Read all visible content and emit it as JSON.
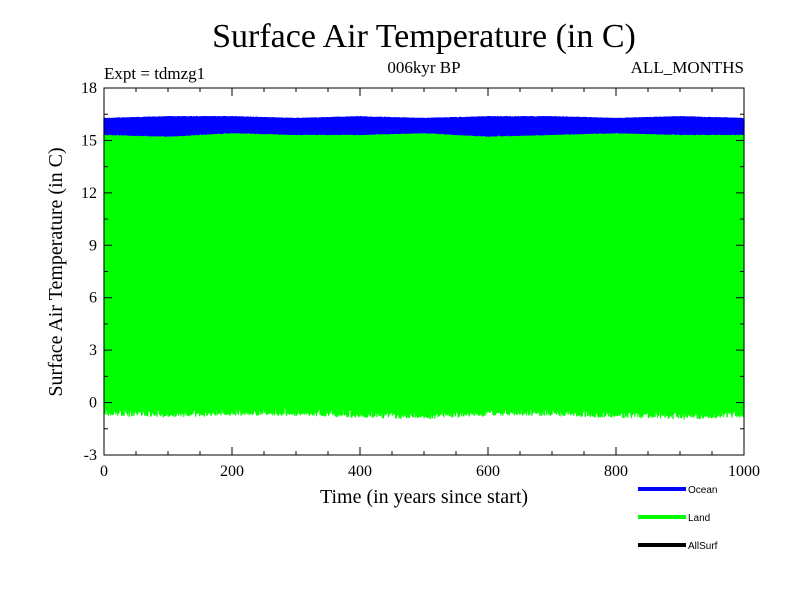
{
  "chart_data": {
    "type": "line",
    "title": "Surface Air Temperature (in C)",
    "subtitle_left": "Expt = tdmzg1",
    "subtitle_center": "006kyr BP",
    "subtitle_right": "ALL_MONTHS",
    "xlabel": "Time (in years since start)",
    "ylabel": "Surface Air Temperature (in C)",
    "xlim": [
      0,
      1000
    ],
    "ylim": [
      -3,
      18
    ],
    "x_ticks": [
      0,
      200,
      400,
      600,
      800,
      1000
    ],
    "y_ticks": [
      -3,
      0,
      3,
      6,
      9,
      12,
      15,
      18
    ],
    "legend_position": "bottom-right",
    "series": [
      {
        "name": "Ocean",
        "color": "#0000ff",
        "range_low": [
          15.3,
          15.2,
          15.4,
          15.3,
          15.3,
          15.4,
          15.2,
          15.3,
          15.4,
          15.3,
          15.3
        ],
        "range_high": [
          16.3,
          16.4,
          16.4,
          16.3,
          16.4,
          16.3,
          16.4,
          16.4,
          16.3,
          16.4,
          16.3
        ],
        "x": [
          0,
          100,
          200,
          300,
          400,
          500,
          600,
          700,
          800,
          900,
          1000
        ]
      },
      {
        "name": "Land",
        "color": "#00ff00",
        "range_low": [
          -0.3,
          -0.4,
          -0.3,
          -0.3,
          -0.4,
          -0.5,
          -0.3,
          -0.3,
          -0.4,
          -0.5,
          -0.4
        ],
        "range_high": [
          15.3,
          15.4,
          15.5,
          15.4,
          15.4,
          15.5,
          15.4,
          15.4,
          15.4,
          15.4,
          15.3
        ],
        "x": [
          0,
          100,
          200,
          300,
          400,
          500,
          600,
          700,
          800,
          900,
          1000
        ]
      },
      {
        "name": "AllSurf",
        "color": "#000000",
        "range_low": [],
        "range_high": [],
        "x": []
      }
    ]
  }
}
